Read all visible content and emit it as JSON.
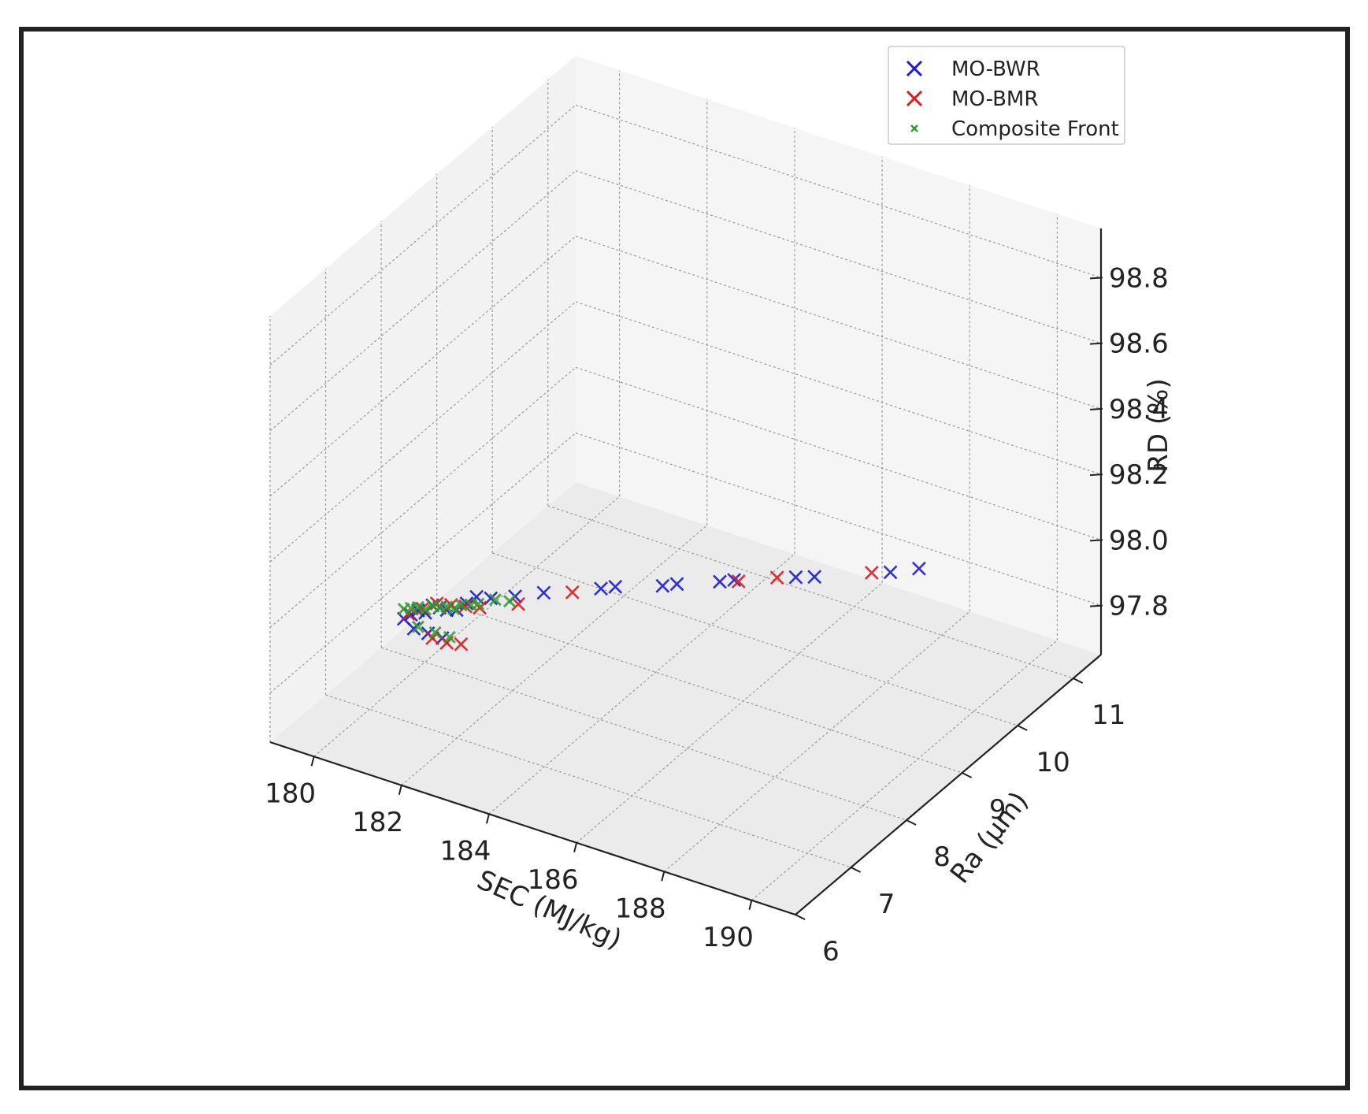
{
  "chart_data": {
    "type": "scatter",
    "projection": "3d",
    "title": "",
    "xlabel": "SEC (MJ/kg)",
    "ylabel": "Ra (µm)",
    "zlabel": "RD (%)",
    "xlim": [
      179,
      191
    ],
    "ylim": [
      6,
      11.5
    ],
    "zlim": [
      97.65,
      98.95
    ],
    "x_ticks": [
      "180",
      "182",
      "184",
      "186",
      "188",
      "190"
    ],
    "y_ticks": [
      "6",
      "7",
      "8",
      "9",
      "10",
      "11"
    ],
    "z_ticks": [
      "97.8",
      "98.0",
      "98.2",
      "98.4",
      "98.6",
      "98.8"
    ],
    "grid": true,
    "legend_position": "top-right",
    "series": [
      {
        "name": "MO-BWR",
        "color": "#1a1adb",
        "marker": "x",
        "points": [
          [
            181.8,
            6.2,
            98.12
          ],
          [
            181.9,
            6.25,
            98.13
          ],
          [
            182.0,
            6.3,
            98.14
          ],
          [
            182.1,
            6.35,
            98.13
          ],
          [
            182.2,
            6.4,
            98.15
          ],
          [
            182.3,
            6.45,
            98.14
          ],
          [
            182.4,
            6.5,
            98.13
          ],
          [
            182.5,
            6.6,
            98.12
          ],
          [
            182.6,
            6.7,
            98.13
          ],
          [
            182.7,
            6.8,
            98.14
          ],
          [
            182.9,
            6.9,
            98.13
          ],
          [
            183.2,
            7.1,
            98.12
          ],
          [
            183.6,
            7.3,
            98.12
          ],
          [
            184.4,
            7.7,
            98.11
          ],
          [
            184.6,
            7.8,
            98.11
          ],
          [
            185.3,
            8.1,
            98.1
          ],
          [
            185.5,
            8.2,
            98.1
          ],
          [
            186.1,
            8.5,
            98.09
          ],
          [
            186.3,
            8.6,
            98.09
          ],
          [
            187.2,
            9.0,
            98.08
          ],
          [
            187.5,
            9.1,
            98.08
          ],
          [
            188.6,
            9.6,
            98.07
          ],
          [
            189.0,
            9.8,
            98.07
          ],
          [
            181.9,
            6.3,
            98.08
          ],
          [
            182.1,
            6.4,
            98.06
          ],
          [
            182.3,
            6.5,
            98.04
          ]
        ]
      },
      {
        "name": "MO-BMR",
        "color": "#e01b1b",
        "marker": "x",
        "points": [
          [
            181.9,
            6.2,
            98.14
          ],
          [
            182.1,
            6.3,
            98.15
          ],
          [
            182.3,
            6.4,
            98.16
          ],
          [
            182.5,
            6.5,
            98.15
          ],
          [
            182.7,
            6.6,
            98.14
          ],
          [
            182.9,
            6.7,
            98.13
          ],
          [
            183.4,
            7.0,
            98.12
          ],
          [
            184.0,
            7.5,
            98.11
          ],
          [
            186.4,
            8.6,
            98.09
          ],
          [
            186.9,
            8.9,
            98.08
          ],
          [
            188.3,
            9.5,
            98.07
          ],
          [
            182.2,
            6.4,
            98.05
          ],
          [
            182.4,
            6.5,
            98.03
          ],
          [
            182.6,
            6.6,
            98.02
          ]
        ]
      },
      {
        "name": "Composite Front",
        "color": "#2ca02c",
        "marker": "x",
        "points": [
          [
            181.8,
            6.2,
            98.15
          ],
          [
            181.9,
            6.25,
            98.15
          ],
          [
            182.0,
            6.3,
            98.15
          ],
          [
            182.1,
            6.35,
            98.14
          ],
          [
            182.2,
            6.4,
            98.15
          ],
          [
            182.3,
            6.45,
            98.14
          ],
          [
            182.4,
            6.5,
            98.14
          ],
          [
            182.5,
            6.55,
            98.13
          ],
          [
            182.6,
            6.6,
            98.14
          ],
          [
            182.7,
            6.7,
            98.13
          ],
          [
            182.8,
            6.75,
            98.13
          ],
          [
            183.0,
            6.9,
            98.13
          ],
          [
            183.2,
            7.0,
            98.12
          ],
          [
            182.2,
            6.45,
            98.06
          ],
          [
            182.4,
            6.55,
            98.04
          ],
          [
            182.0,
            6.3,
            98.09
          ]
        ]
      }
    ]
  }
}
